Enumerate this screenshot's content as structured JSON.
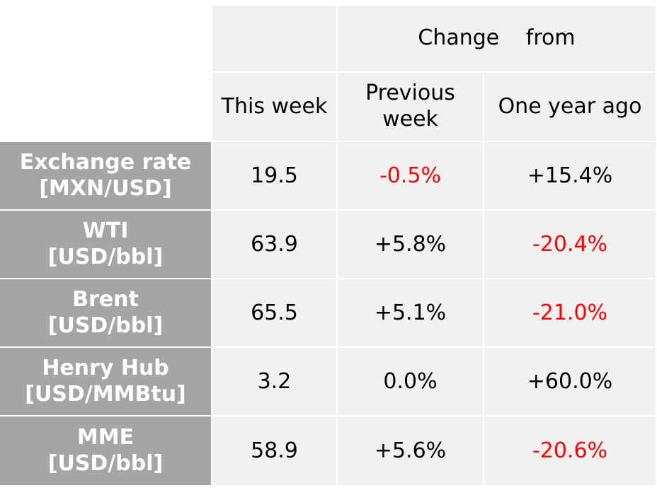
{
  "header": {
    "change_from": "Change   from",
    "this_week": "This week",
    "previous_week_line1": "Previous",
    "previous_week_line2": "week",
    "one_year_ago": "One year ago"
  },
  "rows": [
    {
      "label_line1": "Exchange rate",
      "label_line2": "[MXN/USD]",
      "this_week": "19.5",
      "previous_week": "-0.5%",
      "one_year_ago": "+15.4%"
    },
    {
      "label_line1": "WTI",
      "label_line2": "[USD/bbl]",
      "this_week": "63.9",
      "previous_week": "+5.8%",
      "one_year_ago": "-20.4%"
    },
    {
      "label_line1": "Brent",
      "label_line2": "[USD/bbl]",
      "this_week": "65.5",
      "previous_week": "+5.1%",
      "one_year_ago": "-21.0%"
    },
    {
      "label_line1": "Henry Hub",
      "label_line2": "[USD/MMBtu]",
      "this_week": "3.2",
      "previous_week": "0.0%",
      "one_year_ago": "+60.0%"
    },
    {
      "label_line1": "MME",
      "label_line2": "[USD/bbl]",
      "this_week": "58.9",
      "previous_week": "+5.6%",
      "one_year_ago": "-20.6%"
    }
  ],
  "colors": {
    "label_bg": "#a5a5a5",
    "cell_bg": "#f1f1f1",
    "negative": "#ff0000"
  }
}
